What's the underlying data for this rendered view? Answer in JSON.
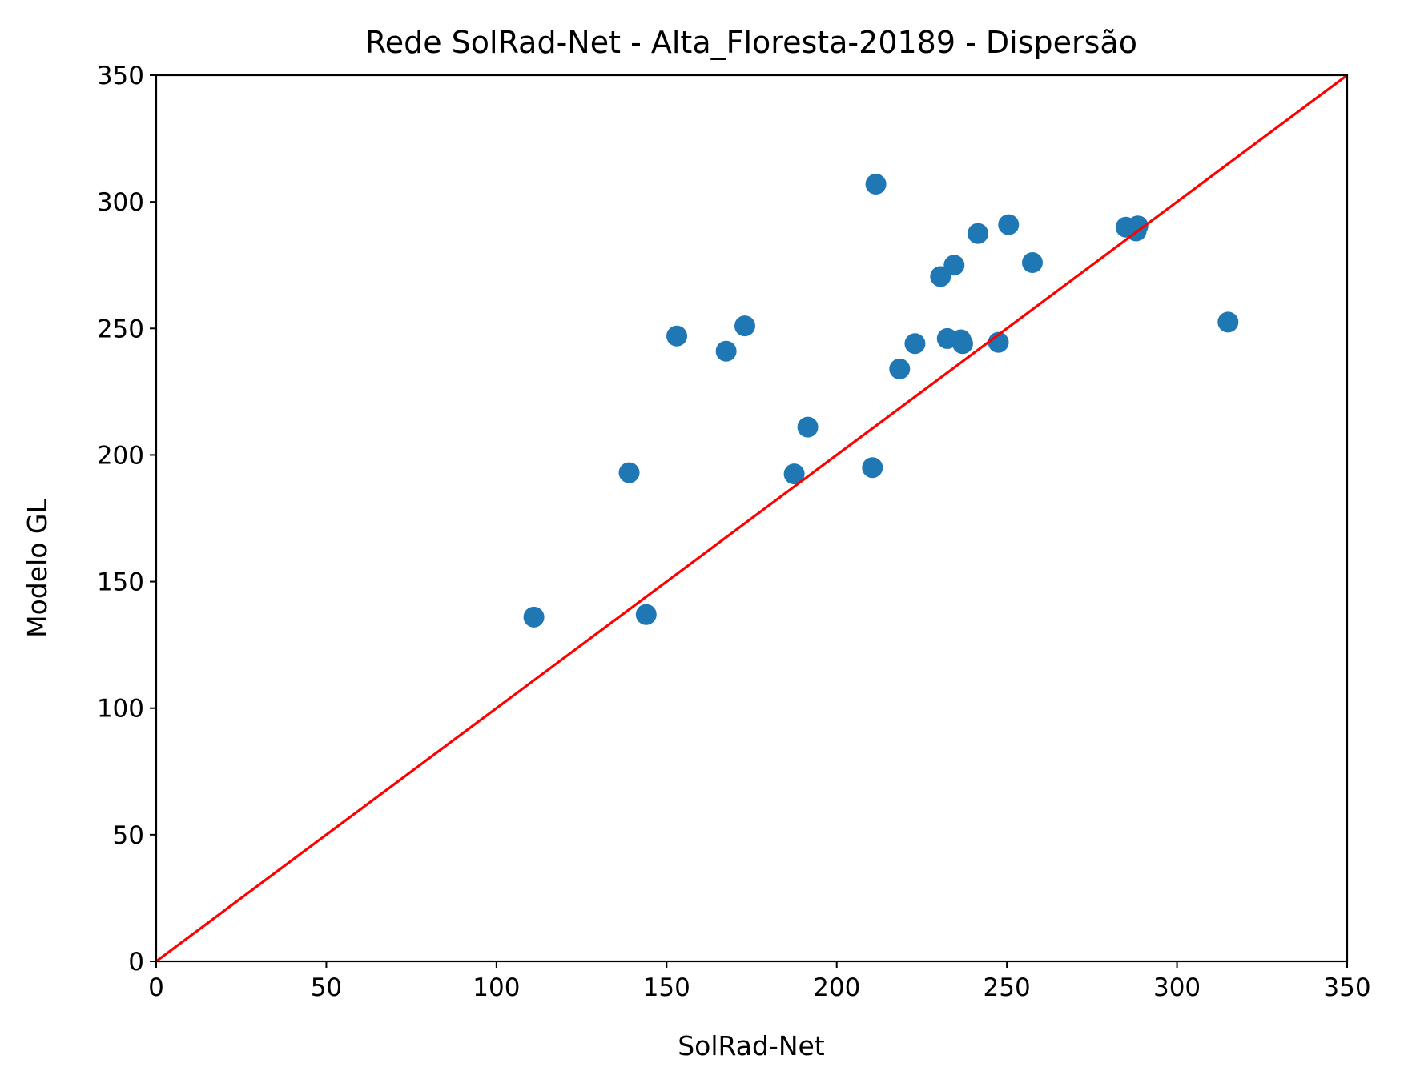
{
  "chart_data": {
    "type": "scatter",
    "title": "Rede SolRad-Net - Alta_Floresta-20189 - Dispersão",
    "xlabel": "SolRad-Net",
    "ylabel": "Modelo GL",
    "xlim": [
      0,
      350
    ],
    "ylim": [
      0,
      350
    ],
    "xticks": [
      0,
      50,
      100,
      150,
      200,
      250,
      300,
      350
    ],
    "yticks": [
      0,
      50,
      100,
      150,
      200,
      250,
      300,
      350
    ],
    "grid": false,
    "legend": "none",
    "colors": {
      "points": "#1f77b4",
      "reference_line": "#ff0000"
    },
    "series": [
      {
        "points": [
          [
            111,
            136
          ],
          [
            139,
            193
          ],
          [
            144,
            137
          ],
          [
            153,
            247
          ],
          [
            167.5,
            241
          ],
          [
            173,
            251
          ],
          [
            187.5,
            192.5
          ],
          [
            191.5,
            211
          ],
          [
            210.5,
            195
          ],
          [
            211.5,
            307
          ],
          [
            218.5,
            234
          ],
          [
            223,
            244
          ],
          [
            230.5,
            270.5
          ],
          [
            232.5,
            246
          ],
          [
            234.5,
            275
          ],
          [
            236.5,
            245.5
          ],
          [
            237,
            244
          ],
          [
            241.5,
            287.5
          ],
          [
            247.5,
            244.5
          ],
          [
            250.5,
            291
          ],
          [
            257.5,
            276
          ],
          [
            285,
            290
          ],
          [
            288,
            288.5
          ],
          [
            288.5,
            290.5
          ],
          [
            315,
            252.5
          ]
        ]
      }
    ],
    "reference_line": {
      "x": [
        0,
        350
      ],
      "y": [
        0,
        350
      ]
    }
  }
}
